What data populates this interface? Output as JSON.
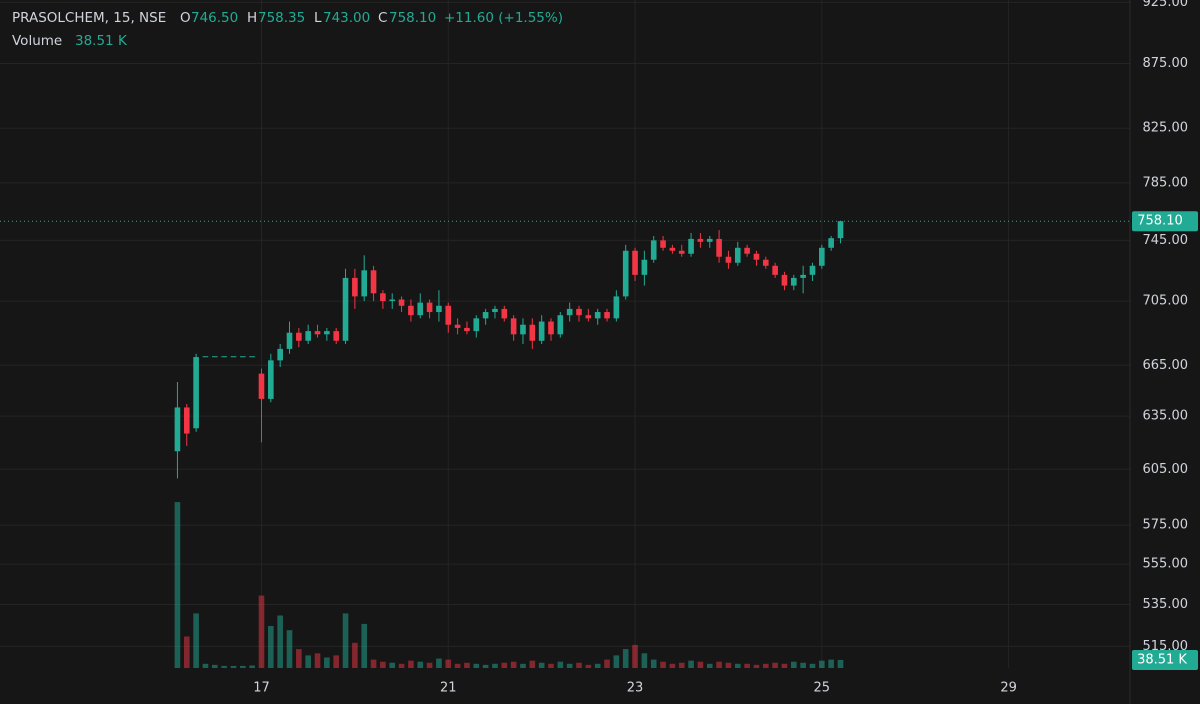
{
  "chart_data": {
    "type": "candlestick",
    "symbol": "PRASOLCHEM, 15, NSE",
    "ohlc_labels": {
      "o": "O",
      "o_value": "746.50",
      "h": "H",
      "h_value": "758.35",
      "l": "L",
      "l_value": "743.00",
      "c": "C",
      "c_value": "758.10",
      "change": "+11.60 (+1.55%)"
    },
    "volume_title": "Volume",
    "volume_value_label": "38.51 K",
    "last_price_label": "758.10",
    "log_scale": true,
    "grid": true,
    "up_color": "#22ab94",
    "down_color": "#f23645",
    "ylim": [
      505,
      927
    ],
    "yticks": [
      {
        "value": 925,
        "label": "925.00"
      },
      {
        "value": 875,
        "label": "875.00"
      },
      {
        "value": 825,
        "label": "825.00"
      },
      {
        "value": 785,
        "label": "785.00"
      },
      {
        "value": 745,
        "label": "745.00"
      },
      {
        "value": 705,
        "label": "705.00"
      },
      {
        "value": 665,
        "label": "665.00"
      },
      {
        "value": 635,
        "label": "635.00"
      },
      {
        "value": 605,
        "label": "605.00"
      },
      {
        "value": 575,
        "label": "575.00"
      },
      {
        "value": 555,
        "label": "555.00"
      },
      {
        "value": 535,
        "label": "535.00"
      },
      {
        "value": 515,
        "label": "515.00"
      }
    ],
    "xlim": [
      -19,
      102
    ],
    "xticks": [
      {
        "value": 9,
        "label": "17"
      },
      {
        "value": 29,
        "label": "21"
      },
      {
        "value": 49,
        "label": "23"
      },
      {
        "value": 69,
        "label": "25"
      },
      {
        "value": 89,
        "label": "29"
      }
    ],
    "volume_lim": [
      0,
      800
    ],
    "x": [
      0,
      1,
      2,
      3,
      4,
      5,
      6,
      7,
      8,
      9,
      10,
      11,
      12,
      13,
      14,
      15,
      16,
      17,
      18,
      19,
      20,
      21,
      22,
      23,
      24,
      25,
      26,
      27,
      28,
      29,
      30,
      31,
      32,
      33,
      34,
      35,
      36,
      37,
      38,
      39,
      40,
      41,
      42,
      43,
      44,
      45,
      46,
      47,
      48,
      49,
      50,
      51,
      52,
      53,
      54,
      55,
      56,
      57,
      58,
      59,
      60,
      61,
      62,
      63,
      64,
      65,
      66,
      67,
      68,
      69,
      70,
      71
    ],
    "open": [
      615,
      640,
      628,
      670.5,
      670.5,
      670.5,
      670.5,
      670.5,
      670.5,
      660,
      645,
      668,
      675,
      685,
      680,
      686,
      684,
      686,
      680,
      720,
      708,
      725,
      710,
      705,
      706,
      702,
      696,
      704,
      698,
      702,
      690,
      688,
      686,
      694,
      698,
      700,
      694,
      684,
      690,
      680,
      692,
      684,
      696,
      700,
      696,
      694,
      698,
      694,
      708,
      738,
      722,
      732,
      745,
      740,
      738,
      736,
      746,
      744,
      746,
      734,
      730,
      740,
      736,
      732,
      728,
      722,
      715,
      720,
      722,
      728,
      740,
      746.5
    ],
    "high": [
      655,
      642,
      672,
      670.5,
      670.5,
      670.5,
      670.5,
      670.5,
      670.5,
      663,
      672,
      678,
      692,
      688,
      690,
      690,
      688,
      688,
      726,
      726,
      735,
      728,
      712,
      710,
      708,
      706,
      710,
      706,
      712,
      704,
      694,
      692,
      696,
      700,
      702,
      702,
      696,
      694,
      694,
      696,
      694,
      698,
      704,
      702,
      700,
      700,
      700,
      712,
      742,
      740,
      738,
      748,
      748,
      742,
      742,
      750,
      750,
      748,
      752,
      738,
      744,
      742,
      738,
      734,
      730,
      724,
      722,
      728,
      730,
      742,
      748,
      758.35
    ],
    "low": [
      600,
      618,
      626,
      670.5,
      670.5,
      670.5,
      670.5,
      670.5,
      670.5,
      620,
      643,
      664,
      672,
      676,
      678,
      682,
      680,
      678,
      678,
      700,
      705,
      705,
      700,
      700,
      698,
      692,
      694,
      694,
      692,
      685,
      684,
      684,
      682,
      690,
      694,
      692,
      680,
      678,
      675,
      678,
      680,
      682,
      692,
      692,
      692,
      690,
      692,
      692,
      706,
      718,
      715,
      730,
      738,
      736,
      734,
      734,
      740,
      740,
      730,
      726,
      728,
      734,
      728,
      726,
      720,
      712,
      712,
      710,
      718,
      726,
      738,
      743
    ],
    "close": [
      640,
      625,
      670,
      670.5,
      670.5,
      670.5,
      670.5,
      670.5,
      670.5,
      645,
      668,
      675,
      685,
      680,
      686,
      684,
      686,
      680,
      720,
      708,
      725,
      710,
      705,
      706,
      702,
      696,
      704,
      698,
      702,
      690,
      688,
      686,
      694,
      698,
      700,
      694,
      684,
      690,
      680,
      692,
      684,
      696,
      700,
      696,
      694,
      698,
      694,
      708,
      738,
      722,
      732,
      745,
      740,
      738,
      736,
      746,
      744,
      746,
      734,
      730,
      740,
      736,
      732,
      728,
      722,
      715,
      720,
      722,
      728,
      740,
      746.5,
      758.1
    ],
    "volume": [
      790,
      150,
      260,
      20,
      15,
      10,
      10,
      10,
      12,
      345,
      200,
      250,
      180,
      90,
      60,
      70,
      50,
      60,
      260,
      120,
      210,
      40,
      30,
      25,
      20,
      35,
      30,
      25,
      45,
      40,
      20,
      25,
      20,
      15,
      20,
      25,
      30,
      20,
      35,
      25,
      20,
      30,
      20,
      25,
      15,
      20,
      40,
      60,
      90,
      110,
      70,
      40,
      30,
      20,
      25,
      35,
      30,
      20,
      30,
      25,
      20,
      20,
      15,
      20,
      25,
      20,
      30,
      25,
      20,
      35,
      40,
      38.51
    ]
  }
}
